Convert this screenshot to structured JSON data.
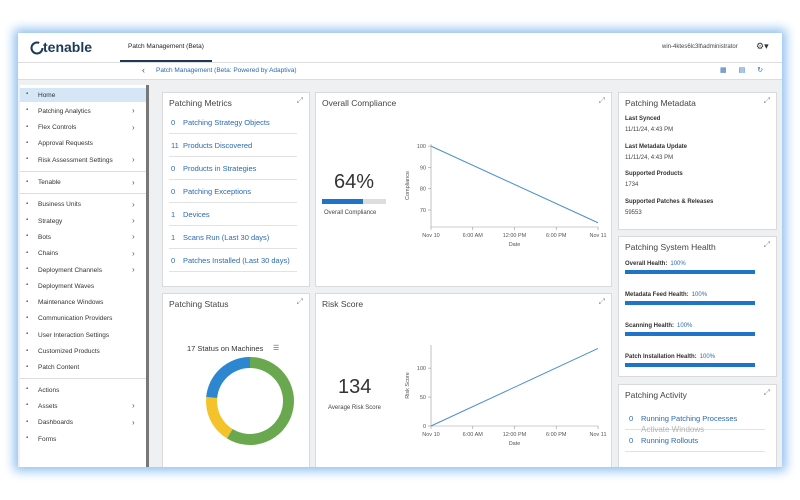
{
  "header": {
    "logo": "tenable",
    "tab": "Patch Management (Beta)",
    "user": "win-4ktes6lc3lt\\administrator"
  },
  "breadcrumb": "Patch Management (Beta: Powered by Adaptiva)",
  "sidebar": [
    [
      {
        "label": "Home",
        "active": true
      },
      {
        "label": "Patching Analytics",
        "expandable": true
      },
      {
        "label": "Flex Controls",
        "expandable": true
      },
      {
        "label": "Approval Requests"
      },
      {
        "label": "Risk Assessment Settings",
        "expandable": true
      }
    ],
    [
      {
        "label": "Tenable",
        "expandable": true
      }
    ],
    [
      {
        "label": "Business Units",
        "expandable": true
      },
      {
        "label": "Strategy",
        "expandable": true
      },
      {
        "label": "Bots",
        "expandable": true
      },
      {
        "label": "Chains",
        "expandable": true
      },
      {
        "label": "Deployment Channels",
        "expandable": true
      },
      {
        "label": "Deployment Waves"
      },
      {
        "label": "Maintenance Windows"
      },
      {
        "label": "Communication Providers"
      },
      {
        "label": "User Interaction Settings"
      },
      {
        "label": "Customized Products"
      },
      {
        "label": "Patch Content"
      }
    ],
    [
      {
        "label": "Actions"
      },
      {
        "label": "Assets",
        "expandable": true
      },
      {
        "label": "Dashboards",
        "expandable": true
      },
      {
        "label": "Forms"
      }
    ]
  ],
  "metrics": {
    "title": "Patching Metrics",
    "items": [
      {
        "count": 0,
        "label": "Patching Strategy Objects"
      },
      {
        "count": 11,
        "label": "Products Discovered"
      },
      {
        "count": 0,
        "label": "Products in Strategies"
      },
      {
        "count": 0,
        "label": "Patching Exceptions"
      },
      {
        "count": 1,
        "label": "Devices"
      },
      {
        "count": 1,
        "label": "Scans Run (Last 30 days)"
      },
      {
        "count": 0,
        "label": "Patches Installed (Last 30 days)"
      }
    ]
  },
  "compliance": {
    "title": "Overall Compliance",
    "value": 64,
    "value_label": "64%",
    "xlim": [
      0,
      100
    ],
    "caption": "Overall Compliance",
    "chart": {
      "type": "line",
      "x": [
        "Nov 10",
        "Nov 11"
      ],
      "values": [
        100,
        64
      ],
      "ylim": [
        62,
        101
      ],
      "yticks": [
        70,
        80,
        90,
        100
      ],
      "xticks": [
        "Nov 10",
        "6:00 AM",
        "12:00 PM",
        "6:00 PM",
        "Nov 11"
      ],
      "xlabel": "Date",
      "ylabel": "Compliance",
      "color": "#4a90c8"
    }
  },
  "status": {
    "title": "Patching Status",
    "caption": "17 Status on Machines",
    "chart": {
      "type": "donut",
      "values": [
        10,
        3,
        4
      ],
      "colors": [
        "#6aa84f",
        "#f4c22b",
        "#2d86d0"
      ]
    }
  },
  "risk": {
    "title": "Risk Score",
    "value": 134,
    "caption": "Average Risk Score",
    "chart": {
      "type": "line",
      "x": [
        "Nov 10",
        "Nov 11"
      ],
      "values": [
        0,
        134
      ],
      "ylim": [
        0,
        140
      ],
      "yticks": [
        0,
        50,
        100
      ],
      "xticks": [
        "Nov 10",
        "6:00 AM",
        "12:00 PM",
        "6:00 PM",
        "Nov 11"
      ],
      "xlabel": "Date",
      "ylabel": "Risk Score",
      "color": "#4a90c8"
    }
  },
  "metadata": {
    "title": "Patching Metadata",
    "fields": [
      {
        "label": "Last Synced",
        "value": "11/11/24, 4:43 PM"
      },
      {
        "label": "Last Metadata Update",
        "value": "11/11/24, 4:43 PM"
      },
      {
        "label": "Supported Products",
        "value": 1734
      },
      {
        "label": "Supported Patches & Releases",
        "value": 59553
      }
    ]
  },
  "health": {
    "title": "Patching System Health",
    "xlim": [
      0,
      100
    ],
    "items": [
      {
        "label": "Overall Health:",
        "value": 100,
        "value_label": "100%"
      },
      {
        "label": "Metadata Feed Health:",
        "value": 100,
        "value_label": "100%"
      },
      {
        "label": "Scanning Health:",
        "value": 100,
        "value_label": "100%"
      },
      {
        "label": "Patch Installation Health:",
        "value": 100,
        "value_label": "100%"
      }
    ]
  },
  "activity": {
    "title": "Patching Activity",
    "items": [
      {
        "count": 0,
        "label": "Running Patching Processes"
      },
      {
        "count": 0,
        "label": "Running Rollouts"
      }
    ]
  },
  "watermark": "Activate Windows"
}
